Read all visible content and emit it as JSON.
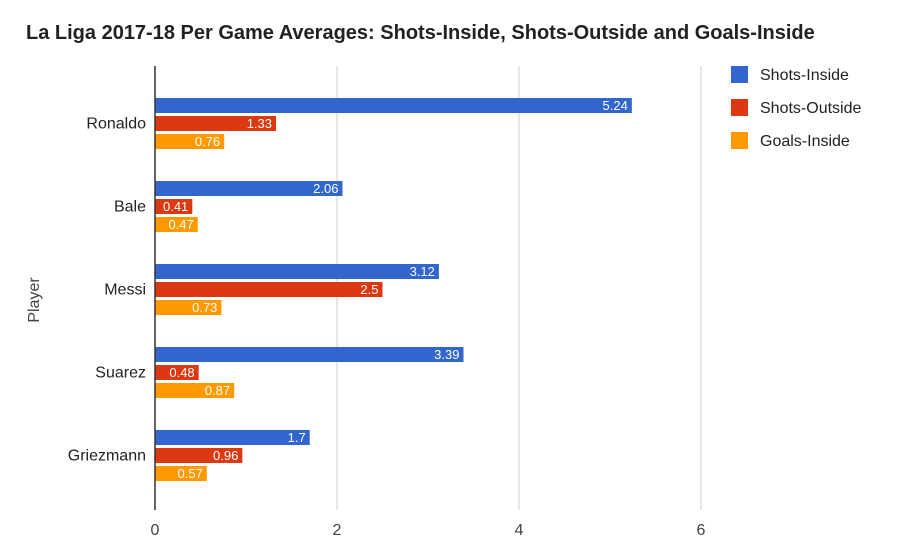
{
  "chart_data": {
    "type": "bar",
    "orientation": "horizontal",
    "title": "La Liga 2017-18 Per Game Averages: Shots-Inside, Shots-Outside and Goals-Inside",
    "ylabel": "Player",
    "xlabel": "",
    "categories": [
      "Ronaldo",
      "Bale",
      "Messi",
      "Suarez",
      "Griezmann"
    ],
    "series": [
      {
        "name": "Shots-Inside",
        "color": "#3366cc",
        "values": [
          5.24,
          2.06,
          3.12,
          3.39,
          1.7
        ]
      },
      {
        "name": "Shots-Outside",
        "color": "#dc3912",
        "values": [
          1.33,
          0.41,
          2.5,
          0.48,
          0.96
        ]
      },
      {
        "name": "Goals-Inside",
        "color": "#ff9900",
        "values": [
          0.76,
          0.47,
          0.73,
          0.87,
          0.57
        ]
      }
    ],
    "xlim": [
      0,
      7
    ],
    "xticks": [
      0,
      2,
      4,
      6
    ],
    "grid": true,
    "legend_position": "right",
    "data_labels": true
  }
}
